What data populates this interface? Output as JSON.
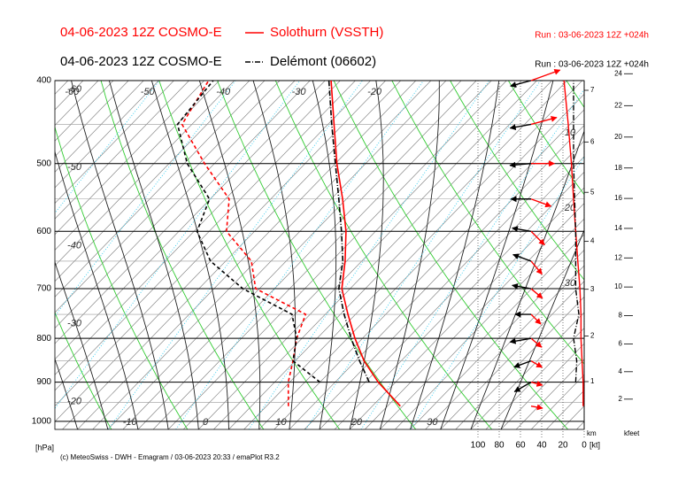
{
  "chart_data": {
    "type": "emagram",
    "series": [
      {
        "model": "04-06-2023 12Z COSMO-E",
        "name": "Solothurn (VSSTH)",
        "run": "Run : 03-06-2023 12Z +024h",
        "color": "#ff0000",
        "line_style": "solid",
        "temperature": [
          23.7,
          17.7,
          13.1,
          9.0,
          5.0,
          0.9,
          -2.2,
          -5.9,
          -10.5,
          -15.8,
          -21.2,
          -27.2
        ],
        "dewpoint": [
          8.9,
          5.8,
          3.7,
          1.3,
          -0.6,
          -10.5,
          -14.6,
          -21.7,
          -25.5,
          -33.3,
          -41.3,
          -43.4
        ],
        "wind_speed": [
          1,
          1,
          2,
          3,
          3,
          4,
          6,
          8,
          10,
          12,
          15,
          19
        ],
        "wind_dir": [
          280,
          285,
          300,
          310,
          315,
          310,
          320,
          315,
          290,
          270,
          255,
          250
        ]
      },
      {
        "model": "04-06-2023 12Z COSMO-E",
        "name": "Delémont (06602)",
        "run": "Run : 03-06-2023 12Z +024h",
        "color": "#000000",
        "line_style": "dashdot",
        "temperature": [
          null,
          16.5,
          12.5,
          8.5,
          4.5,
          0.5,
          -2.5,
          -6.5,
          -11,
          -16,
          -21.5,
          -27.5
        ],
        "dewpoint": [
          null,
          10.0,
          3.7,
          1.3,
          -2.4,
          -12.2,
          -20.0,
          -25.6,
          -28.1,
          -35.6,
          -41.9,
          -42.8
        ],
        "wind_speed": [
          null,
          8,
          7,
          10,
          5,
          8,
          8,
          8,
          9,
          10,
          10,
          10
        ],
        "wind_dir": [
          null,
          60,
          70,
          80,
          90,
          100,
          110,
          100,
          90,
          85,
          80,
          75
        ]
      }
    ],
    "levels": [
      960,
      900,
      850,
      800,
      750,
      700,
      650,
      600,
      550,
      500,
      450,
      400
    ],
    "y_label": "[hPa]",
    "ylim": [
      400,
      1022
    ],
    "yticks": [
      400,
      500,
      600,
      700,
      800,
      900,
      1000
    ],
    "log_y": true,
    "xlim": [
      -19,
      51
    ],
    "temp_ticks": [
      -60,
      -50,
      -40,
      -30,
      -20,
      -10,
      0,
      10,
      20,
      30
    ],
    "wind_xlim": [
      100,
      0
    ],
    "wind_xticks": [
      100,
      80,
      60,
      40,
      20,
      0
    ],
    "wind_unit": "[kt]",
    "km_label": "km",
    "km_ticks": [
      1,
      2,
      3,
      4,
      5,
      6,
      7
    ],
    "kfeet_label": "kfeet",
    "kfeet_ticks": [
      2,
      4,
      6,
      8,
      10,
      12,
      14,
      16,
      18,
      20,
      22,
      24
    ],
    "speed_labels": [
      10,
      20,
      30
    ],
    "footer": "(c) MeteoSwiss - DWH - Emagram / 03-06-2023 20:33 / emaPlot R3.2"
  }
}
